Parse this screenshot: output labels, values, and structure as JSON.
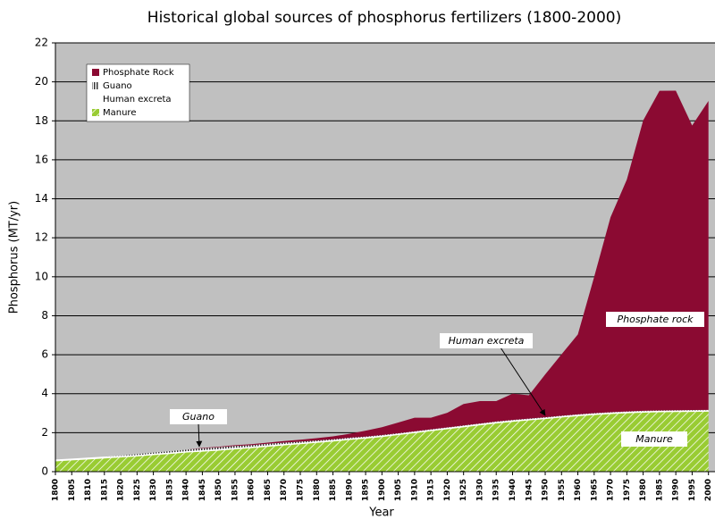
{
  "chart_data": {
    "type": "stacked_area",
    "title": "Historical global sources of phosphorus fertilizers (1800-2000)",
    "xlabel": "Year",
    "ylabel": "Phosphorus (MT/yr)",
    "x": [
      1800,
      1805,
      1810,
      1815,
      1820,
      1825,
      1830,
      1835,
      1840,
      1845,
      1850,
      1855,
      1860,
      1865,
      1870,
      1875,
      1880,
      1885,
      1890,
      1895,
      1900,
      1905,
      1910,
      1915,
      1920,
      1925,
      1930,
      1935,
      1940,
      1945,
      1950,
      1955,
      1960,
      1965,
      1970,
      1975,
      1980,
      1985,
      1990,
      1995,
      2000
    ],
    "series": [
      {
        "name": "Phosphate Rock",
        "color": "#8b0a32",
        "values": [
          0,
          0,
          0,
          0,
          0,
          0,
          0,
          0,
          0,
          0.02,
          0.03,
          0.04,
          0.05,
          0.06,
          0.08,
          0.1,
          0.12,
          0.15,
          0.2,
          0.3,
          0.4,
          0.55,
          0.7,
          0.6,
          0.75,
          1.1,
          1.15,
          1.05,
          1.35,
          1.2,
          2.2,
          3.15,
          4.1,
          7.0,
          10.0,
          11.9,
          14.9,
          16.4,
          16.4,
          14.6,
          15.85
        ]
      },
      {
        "name": "Guano",
        "color": "#333333",
        "values": [
          0,
          0,
          0,
          0,
          0.02,
          0.05,
          0.06,
          0.07,
          0.08,
          0.1,
          0.1,
          0.1,
          0.08,
          0.08,
          0.07,
          0.06,
          0.05,
          0.04,
          0.04,
          0.03,
          0.03,
          0.02,
          0.02,
          0.02,
          0.02,
          0.02,
          0.02,
          0.02,
          0.02,
          0.02,
          0.02,
          0.02,
          0.02,
          0.02,
          0.02,
          0.02,
          0.02,
          0.02,
          0.02,
          0.02,
          0.02
        ]
      },
      {
        "name": "Human excreta",
        "color": "#ffffff",
        "values": [
          0.05,
          0.05,
          0.05,
          0.05,
          0.05,
          0.05,
          0.05,
          0.05,
          0.05,
          0.05,
          0.05,
          0.05,
          0.05,
          0.05,
          0.05,
          0.05,
          0.05,
          0.05,
          0.05,
          0.05,
          0.05,
          0.05,
          0.05,
          0.05,
          0.05,
          0.05,
          0.05,
          0.05,
          0.05,
          0.05,
          0.05,
          0.05,
          0.05,
          0.05,
          0.05,
          0.05,
          0.05,
          0.05,
          0.05,
          0.05,
          0.05
        ]
      },
      {
        "name": "Manure",
        "color": "#99cc33",
        "values": [
          0.55,
          0.6,
          0.65,
          0.7,
          0.75,
          0.8,
          0.87,
          0.93,
          1.0,
          1.05,
          1.1,
          1.17,
          1.23,
          1.3,
          1.37,
          1.43,
          1.5,
          1.57,
          1.65,
          1.72,
          1.8,
          1.9,
          2.0,
          2.1,
          2.2,
          2.3,
          2.4,
          2.5,
          2.58,
          2.65,
          2.72,
          2.8,
          2.87,
          2.93,
          2.98,
          3.02,
          3.05,
          3.07,
          3.08,
          3.09,
          3.1
        ]
      }
    ],
    "annotations": [
      "Guano",
      "Human excreta",
      "Phosphate rock",
      "Manure"
    ],
    "xlim": [
      1800,
      2002
    ],
    "xticks": [
      1800,
      1805,
      1810,
      1815,
      1820,
      1825,
      1830,
      1835,
      1840,
      1845,
      1850,
      1855,
      1860,
      1865,
      1870,
      1875,
      1880,
      1885,
      1890,
      1895,
      1900,
      1905,
      1910,
      1915,
      1920,
      1925,
      1930,
      1935,
      1940,
      1945,
      1950,
      1955,
      1960,
      1965,
      1970,
      1975,
      1980,
      1985,
      1990,
      1995,
      2000
    ],
    "ylim": [
      0,
      22
    ],
    "yticks": [
      0,
      2,
      4,
      6,
      8,
      10,
      12,
      14,
      16,
      18,
      20,
      22
    ],
    "grid": true,
    "legend": "upper left",
    "background": "#c0c0c0"
  }
}
